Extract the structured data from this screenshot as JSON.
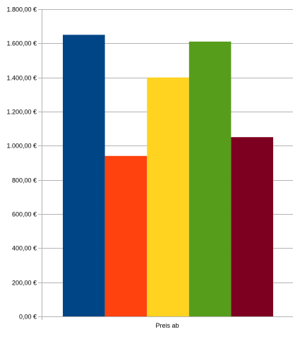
{
  "chart_data": {
    "type": "bar",
    "categories": [
      "Preis ab"
    ],
    "series": [
      {
        "values": [
          1650
        ],
        "color": "#004586"
      },
      {
        "values": [
          940
        ],
        "color": "#ff420e"
      },
      {
        "values": [
          1400
        ],
        "color": "#ffd320"
      },
      {
        "values": [
          1610
        ],
        "color": "#579d1c"
      },
      {
        "values": [
          1050
        ],
        "color": "#7e0021"
      }
    ],
    "ylim": [
      0,
      1800
    ],
    "ytick_labels": [
      "0,00 €",
      "200,00 €",
      "400,00 €",
      "600,00 €",
      "800,00 €",
      "1.000,00 €",
      "1.200,00 €",
      "1.400,00 €",
      "1.600,00 €",
      "1.800,00 €"
    ],
    "ytick_values": [
      0,
      200,
      400,
      600,
      800,
      1000,
      1200,
      1400,
      1600,
      1800
    ],
    "grid": true,
    "legend": false
  }
}
